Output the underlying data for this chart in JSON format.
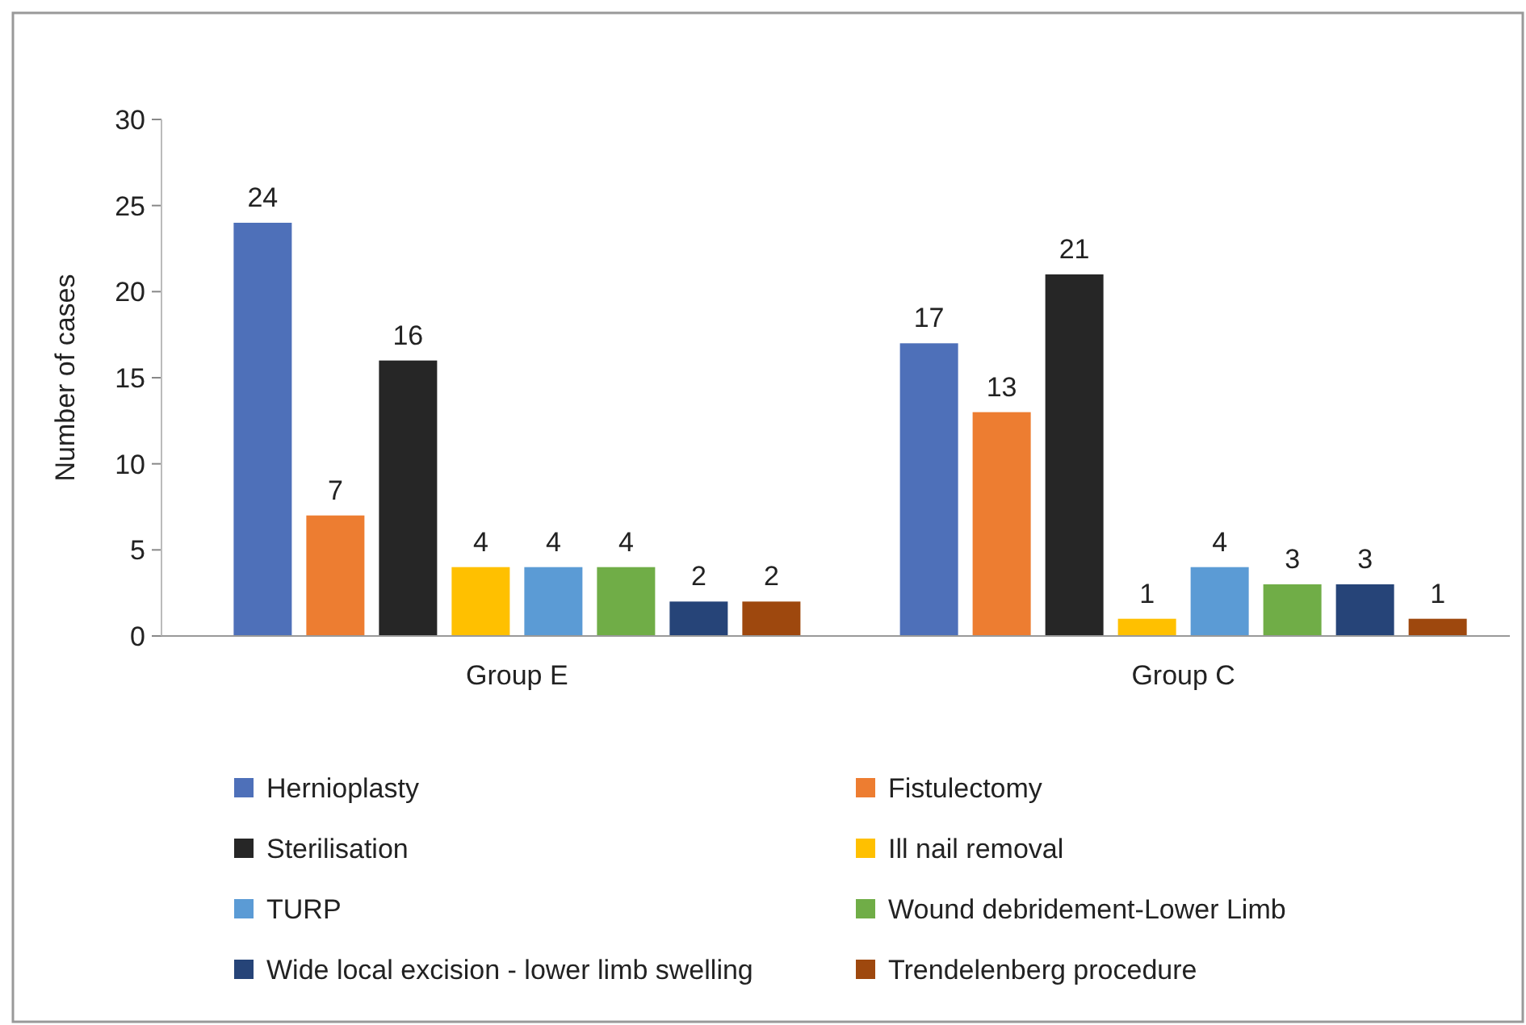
{
  "chart_data": {
    "type": "bar",
    "ylabel": "Number of cases",
    "categories": [
      "Group E",
      "Group C"
    ],
    "series": [
      {
        "name": "Hernioplasty",
        "color": "#4e70b9",
        "values": [
          24,
          17
        ]
      },
      {
        "name": "Fistulectomy",
        "color": "#ed7d31",
        "values": [
          7,
          13
        ]
      },
      {
        "name": "Sterilisation",
        "color": "#262626",
        "values": [
          16,
          21
        ]
      },
      {
        "name": "Ill nail removal",
        "color": "#ffc000",
        "values": [
          4,
          1
        ]
      },
      {
        "name": "TURP",
        "color": "#5b9bd5",
        "values": [
          4,
          4
        ]
      },
      {
        "name": "Wound debridement-Lower Limb",
        "color": "#70ad47",
        "values": [
          4,
          3
        ]
      },
      {
        "name": "Wide local excision - lower limb swelling",
        "color": "#264478",
        "values": [
          2,
          3
        ]
      },
      {
        "name": "Trendelenberg procedure",
        "color": "#9e480e",
        "values": [
          2,
          1
        ]
      }
    ],
    "ylim": [
      0,
      30
    ],
    "yticks": [
      0,
      5,
      10,
      15,
      20,
      25,
      30
    ],
    "data_labels": true,
    "legend": "bottom",
    "grid": false
  }
}
